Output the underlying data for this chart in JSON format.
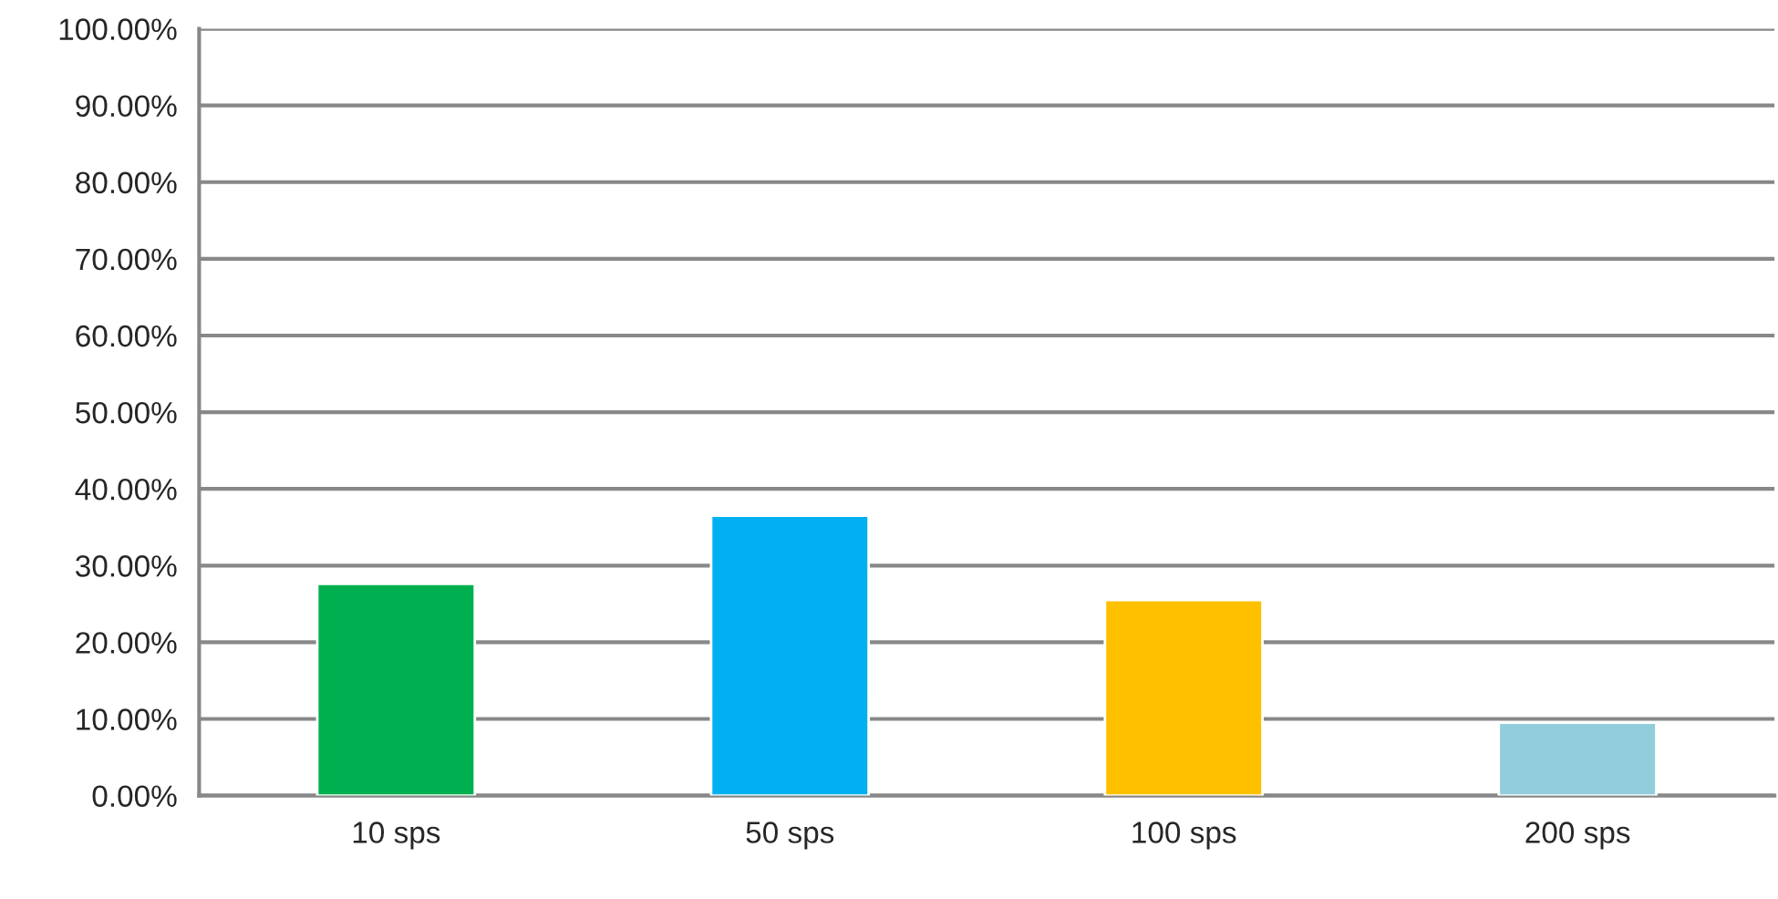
{
  "chart_data": {
    "type": "bar",
    "categories": [
      "10 sps",
      "50 sps",
      "100 sps",
      "200 sps"
    ],
    "values": [
      27.6,
      36.5,
      25.5,
      9.5
    ],
    "colors": [
      "#00b050",
      "#00b0f0",
      "#ffc000",
      "#92cddc"
    ],
    "ylim": [
      0,
      100
    ],
    "yticks": [
      {
        "value": 0,
        "label": "0.00%"
      },
      {
        "value": 10,
        "label": "10.00%"
      },
      {
        "value": 20,
        "label": "20.00%"
      },
      {
        "value": 30,
        "label": "30.00%"
      },
      {
        "value": 40,
        "label": "40.00%"
      },
      {
        "value": 50,
        "label": "50.00%"
      },
      {
        "value": 60,
        "label": "60.00%"
      },
      {
        "value": 70,
        "label": "70.00%"
      },
      {
        "value": 80,
        "label": "80.00%"
      },
      {
        "value": 90,
        "label": "90.00%"
      },
      {
        "value": 100,
        "label": "100.00%"
      }
    ],
    "grid": "y"
  }
}
